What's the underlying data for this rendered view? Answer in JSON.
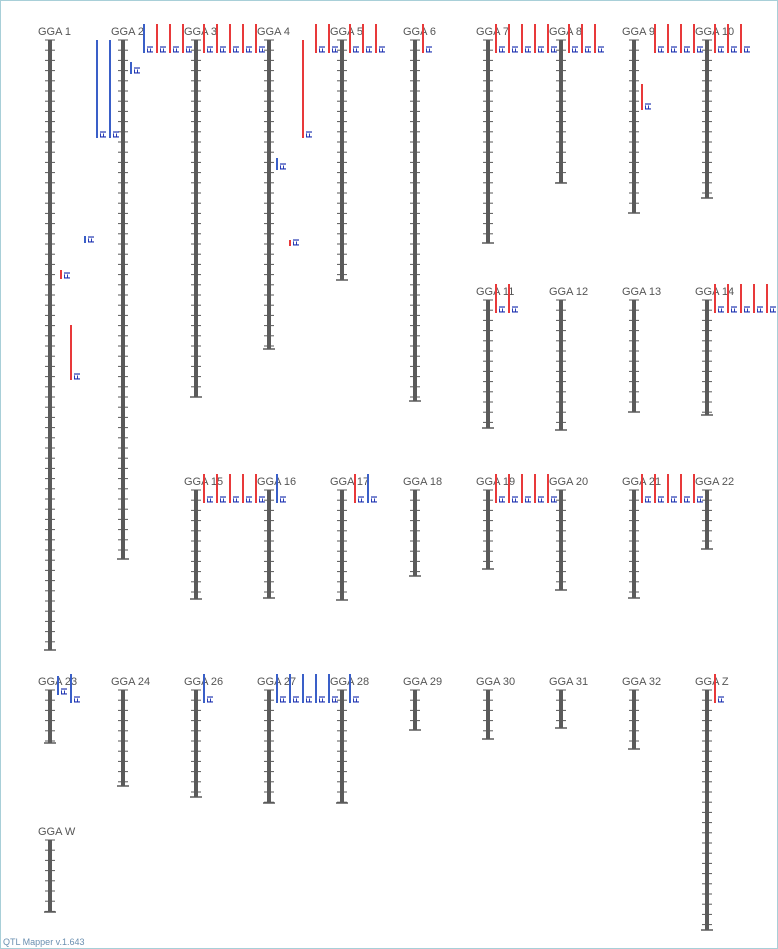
{
  "chromosomes": [
    {
      "label": "GGA 1",
      "qtls": [
        "FI",
        "FI",
        "FI"
      ]
    },
    {
      "label": "GGA 2",
      "qtls": [
        "FI",
        "FI",
        "FI",
        "FI",
        "FI",
        "FI",
        "FI"
      ]
    },
    {
      "label": "GGA 3",
      "qtls": [
        "FI",
        "FI",
        "FI",
        "FI",
        "FI"
      ]
    },
    {
      "label": "GGA 4",
      "qtls": [
        "FI",
        "FI",
        "FI"
      ]
    },
    {
      "label": "GGA 5",
      "qtls": [
        "FI",
        "FI",
        "FI",
        "FI",
        "FI"
      ]
    },
    {
      "label": "GGA 6",
      "qtls": [
        "FI"
      ]
    },
    {
      "label": "GGA 7",
      "qtls": [
        "FI",
        "FI",
        "FI",
        "FI",
        "FI"
      ]
    },
    {
      "label": "GGA 8",
      "qtls": [
        "FI",
        "FI",
        "FI"
      ]
    },
    {
      "label": "GGA 9",
      "qtls": [
        "FI",
        "FI",
        "FI",
        "FI",
        "FI"
      ]
    },
    {
      "label": "GGA 10",
      "qtls": [
        "FI",
        "FI",
        "FI"
      ]
    },
    {
      "label": "GGA 11",
      "qtls": [
        "FI",
        "FI"
      ]
    },
    {
      "label": "GGA 12",
      "qtls": []
    },
    {
      "label": "GGA 13",
      "qtls": []
    },
    {
      "label": "GGA 14",
      "qtls": [
        "FI",
        "FI",
        "FI",
        "FI",
        "FI"
      ]
    },
    {
      "label": "GGA 15",
      "qtls": [
        "FI",
        "FI",
        "FI",
        "FI",
        "FI"
      ]
    },
    {
      "label": "GGA 16",
      "qtls": [
        "FI"
      ]
    },
    {
      "label": "GGA 17",
      "qtls": [
        "FI",
        "FI"
      ]
    },
    {
      "label": "GGA 18",
      "qtls": []
    },
    {
      "label": "GGA 19",
      "qtls": [
        "FI",
        "FI",
        "FI",
        "FI",
        "FI"
      ]
    },
    {
      "label": "GGA 20",
      "qtls": []
    },
    {
      "label": "GGA 21",
      "qtls": [
        "FI",
        "FI",
        "FI",
        "FI",
        "FI"
      ]
    },
    {
      "label": "GGA 22",
      "qtls": []
    },
    {
      "label": "GGA 23",
      "qtls": [
        "FI",
        "FI"
      ]
    },
    {
      "label": "GGA 24",
      "qtls": []
    },
    {
      "label": "GGA 26",
      "qtls": [
        "FI"
      ]
    },
    {
      "label": "GGA 27",
      "qtls": [
        "FI",
        "FI",
        "FI",
        "FI",
        "FI"
      ]
    },
    {
      "label": "GGA 28",
      "qtls": [
        "FI"
      ]
    },
    {
      "label": "GGA 29",
      "qtls": []
    },
    {
      "label": "GGA 30",
      "qtls": []
    },
    {
      "label": "GGA 31",
      "qtls": []
    },
    {
      "label": "GGA 32",
      "qtls": []
    },
    {
      "label": "GGA Z",
      "qtls": [
        "FI"
      ]
    },
    {
      "label": "GGA W",
      "qtls": []
    }
  ],
  "footer": "QTL Mapper v.1.643"
}
